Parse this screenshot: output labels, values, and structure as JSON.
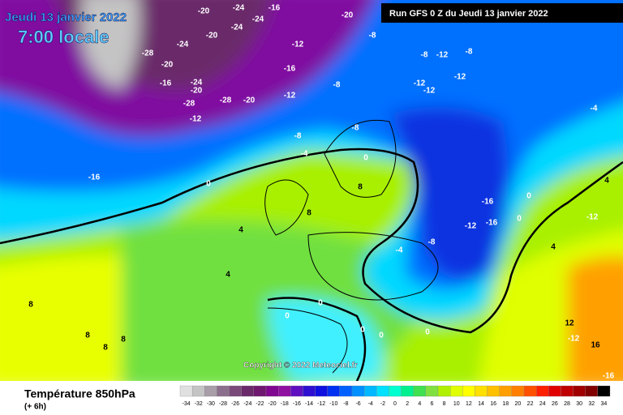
{
  "header": {
    "date": "Jeudi 13 janvier 2022",
    "time": "7:00 locale",
    "run": "Run GFS 0 Z du Jeudi 13 janvier 2022"
  },
  "copyright": "Copyright © 2022 Meteociel.fr",
  "footer": {
    "title": "Température 850hPa",
    "lead": "(+ 6h)"
  },
  "legend": {
    "values": [
      -34,
      -32,
      -30,
      -28,
      -26,
      -24,
      -22,
      -20,
      -18,
      -16,
      -14,
      -12,
      -10,
      -8,
      -6,
      -4,
      -2,
      0,
      2,
      4,
      6,
      8,
      10,
      12,
      14,
      16,
      18,
      20,
      22,
      24,
      26,
      28,
      30,
      32,
      34
    ],
    "colors": [
      "#e0e0e0",
      "#c4c4c4",
      "#a89ea8",
      "#8c6f8c",
      "#7a4a7a",
      "#6a2a6a",
      "#701870",
      "#800890",
      "#9010a0",
      "#6010c0",
      "#3010d0",
      "#1010e0",
      "#0030f0",
      "#0060ff",
      "#0090ff",
      "#00b8ff",
      "#00e0ff",
      "#00ffd0",
      "#00f090",
      "#40e050",
      "#80e040",
      "#b0f000",
      "#e0ff00",
      "#ffff00",
      "#ffe000",
      "#ffc000",
      "#ffa000",
      "#ff8000",
      "#ff5000",
      "#ff2000",
      "#e00000",
      "#c00000",
      "#a00000",
      "#800000",
      "#000000"
    ]
  },
  "isotherm_labels": [
    -24,
    -16,
    -20,
    -24,
    -20,
    -20,
    -24,
    -24,
    -28,
    -20,
    -16,
    -12,
    -16,
    -24,
    -20,
    -28,
    -12,
    -28,
    -20,
    -12,
    -8,
    -12,
    -8,
    -8,
    -12,
    -12,
    -8,
    -12,
    -8,
    -4,
    -8,
    -4,
    -16,
    0,
    0,
    -16,
    -12,
    -16,
    0,
    -8,
    -4,
    4,
    4,
    8,
    8,
    0,
    0,
    0,
    0,
    0,
    12,
    -12,
    16,
    8,
    8,
    8,
    8,
    -16,
    -12,
    4,
    0,
    4
  ]
}
